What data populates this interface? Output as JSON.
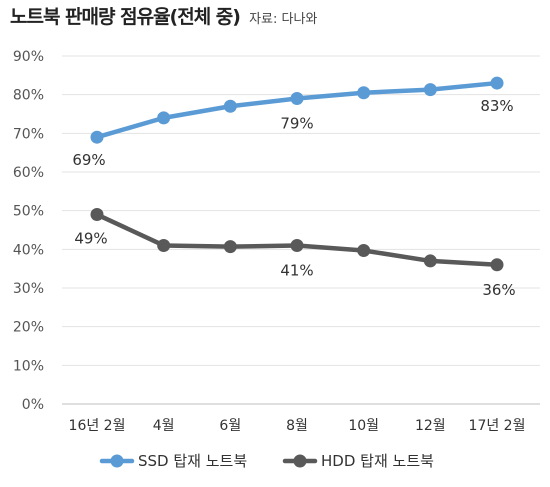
{
  "header": {
    "title": "노트북 판매량 점유율(전체 중)",
    "source": "자료: 다나와"
  },
  "chart_data": {
    "type": "line",
    "title": "노트북 판매량 점유율(전체 중)",
    "source": "자료: 다나와",
    "categories": [
      "16년 2월",
      "4월",
      "6월",
      "8월",
      "10월",
      "12월",
      "17년 2월"
    ],
    "ylim": [
      0,
      90
    ],
    "yticks": [
      "0%",
      "10%",
      "20%",
      "30%",
      "40%",
      "50%",
      "60%",
      "70%",
      "80%",
      "90%"
    ],
    "grid": true,
    "legend_position": "bottom",
    "series": [
      {
        "name": "SSD 탑재 노트북",
        "color": "#5b9bd5",
        "values": [
          69,
          74,
          77,
          79,
          80.5,
          81.3,
          83
        ],
        "labels": {
          "0": "69%",
          "3": "79%",
          "6": "83%"
        }
      },
      {
        "name": "HDD 탑재 노트북",
        "color": "#595959",
        "values": [
          49,
          41,
          40.7,
          41,
          39.7,
          37,
          36
        ],
        "labels": {
          "0": "49%",
          "3": "41%",
          "6": "36%"
        }
      }
    ]
  }
}
